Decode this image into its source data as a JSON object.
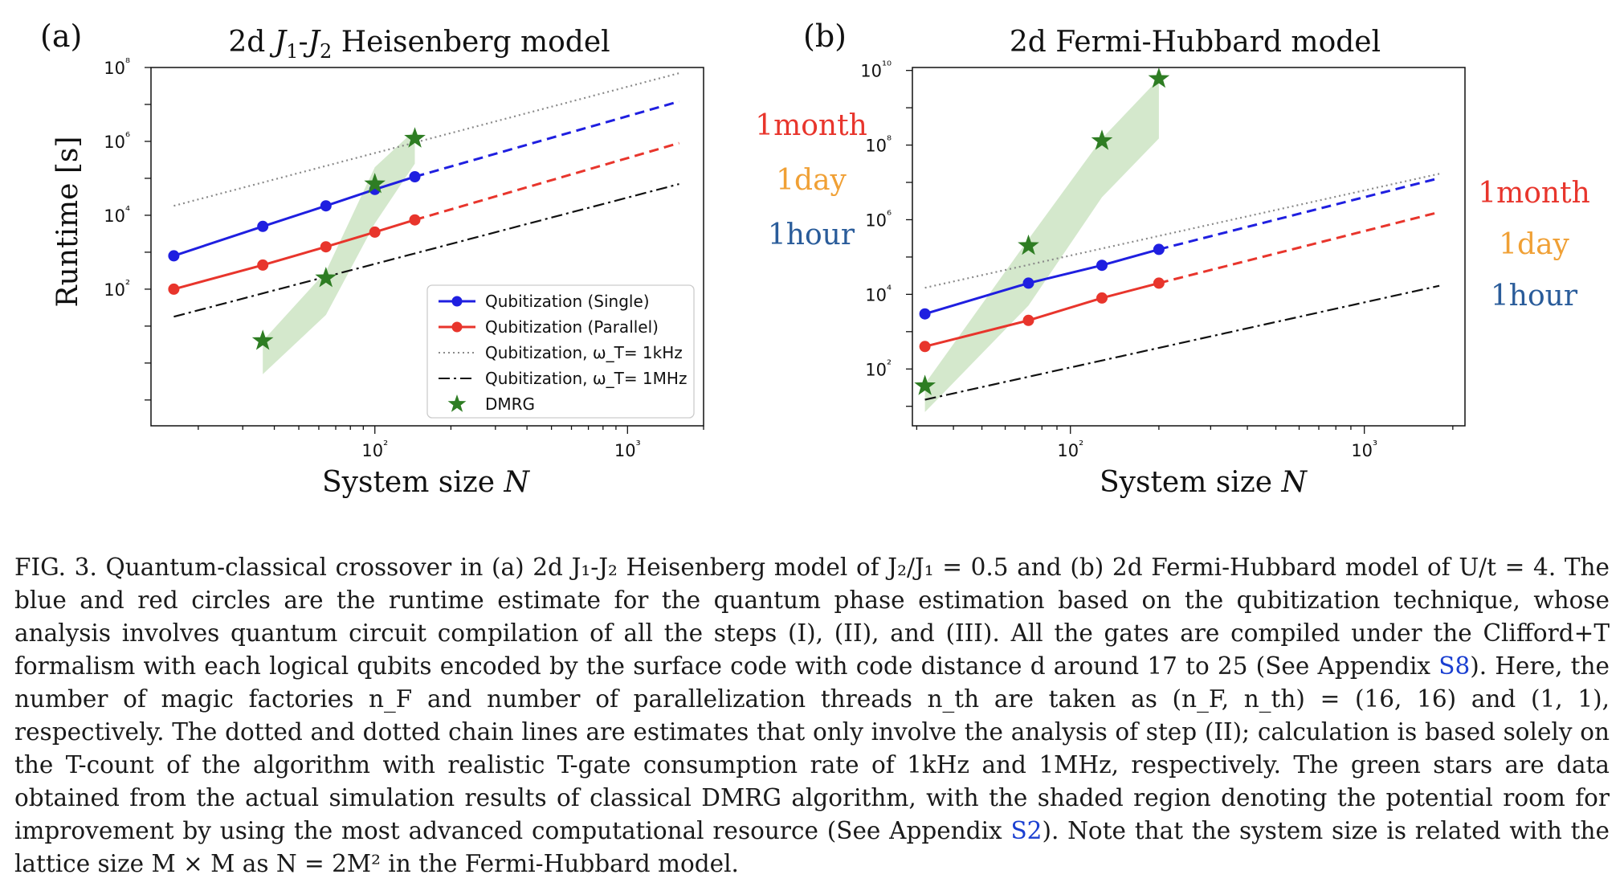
{
  "colors": {
    "single": "#1f1fe0",
    "parallel": "#e8352c",
    "khz": "#8a8a8a",
    "mhz": "#111111",
    "dmrg": "#2e7d23",
    "dmrg_band": "#cfe5c7",
    "label_month": "#e8352c",
    "label_day": "#f0a035",
    "label_hour": "#2a5c9a"
  },
  "caption": {
    "fig": "FIG. 3.",
    "p1": "Quantum-classical crossover in (a) 2d J₁-J₂ Heisenberg model of J₂/J₁ = 0.5 and (b) 2d Fermi-Hubbard model of U/t = 4. The blue and red circles are the runtime estimate for the quantum phase estimation based on the qubitization technique, whose analysis involves quantum circuit compilation of all the steps (I), (II), and (III). All the gates are compiled under the Clifford+T formalism with each logical qubits encoded by the surface code with code distance d around 17 to 25 (See Appendix",
    "ref1": "S8",
    "p2": "). Here, the number of magic factories n_F and number of parallelization threads n_th are taken as (n_F, n_th) = (16, 16) and (1, 1), respectively. The dotted and dotted chain lines are estimates that only involve the analysis of step (II); calculation is based solely on the T-count of the algorithm with realistic T-gate consumption rate of 1kHz and 1MHz, respectively. The green stars are data obtained from the actual simulation results of classical DMRG algorithm, with the shaded region denoting the potential room for improvement by using the most advanced computational resource (See Appendix",
    "ref2": "S2",
    "p3": "). Note that the system size is related with the lattice size M × M as N = 2M² in the Fermi-Hubbard model."
  },
  "chart_data": [
    {
      "panel": "(a)",
      "type": "line",
      "title": "2d J1-J2 Heisenberg model",
      "xlabel": "System size N",
      "ylabel": "Runtime [s]",
      "xscale": "log",
      "yscale": "log",
      "xlim": [
        13,
        2000
      ],
      "ylim": [
        0.02,
        100000000.0
      ],
      "xticks": [
        {
          "v": 100,
          "label": "10²"
        },
        {
          "v": 1000,
          "label": "10³"
        }
      ],
      "yticks": [
        {
          "v": 100,
          "label": "10²"
        },
        {
          "v": 10000,
          "label": "10⁴"
        },
        {
          "v": 1000000,
          "label": "10⁶"
        },
        {
          "v": 100000000,
          "label": "10⁸"
        }
      ],
      "legend_position": "bottom-right",
      "legend": [
        {
          "name": "Qubitization (Single)",
          "style": "single"
        },
        {
          "name": "Qubitization (Parallel)",
          "style": "parallel"
        },
        {
          "name": "Qubitization, ω_T= 1kHz",
          "style": "khz"
        },
        {
          "name": "Qubitization, ω_T= 1MHz",
          "style": "mhz"
        },
        {
          "name": "DMRG",
          "style": "dmrg"
        }
      ],
      "time_labels": [
        "1month",
        "1day",
        "1hour"
      ],
      "series": [
        {
          "name": "Qubitization (Single)",
          "x": [
            16,
            36,
            64,
            100,
            144
          ],
          "y": [
            800,
            5000,
            18000,
            50000,
            110000
          ],
          "extrapolation": {
            "x": [
              144,
              1600
            ],
            "y": [
              110000,
              12000000
            ]
          }
        },
        {
          "name": "Qubitization (Parallel)",
          "x": [
            16,
            36,
            64,
            100,
            144
          ],
          "y": [
            100,
            450,
            1400,
            3500,
            7500
          ],
          "extrapolation": {
            "x": [
              144,
              1600
            ],
            "y": [
              7500,
              900000
            ]
          }
        },
        {
          "name": "Qubitization, ω_T= 1kHz",
          "x": [
            16,
            1600
          ],
          "y": [
            18000,
            70000000
          ]
        },
        {
          "name": "Qubitization, ω_T= 1MHz",
          "x": [
            16,
            1600
          ],
          "y": [
            18,
            70000
          ]
        },
        {
          "name": "DMRG",
          "x": [
            36,
            64,
            100,
            144
          ],
          "y": [
            4,
            200,
            70000,
            1200000
          ],
          "band": {
            "x": [
              36,
              64,
              100,
              144
            ],
            "lower": [
              0.5,
              20,
              6000,
              250000
            ],
            "upper": [
              4,
              300,
              200000,
              2000000
            ]
          }
        }
      ]
    },
    {
      "panel": "(b)",
      "type": "line",
      "title": "2d Fermi-Hubbard model",
      "xlabel": "System size N",
      "ylabel": "",
      "xscale": "log",
      "yscale": "log",
      "xlim": [
        29,
        2200
      ],
      "ylim": [
        3,
        12000000000.0
      ],
      "xticks": [
        {
          "v": 100,
          "label": "10²"
        },
        {
          "v": 1000,
          "label": "10³"
        }
      ],
      "yticks": [
        {
          "v": 100,
          "label": "10²"
        },
        {
          "v": 10000,
          "label": "10⁴"
        },
        {
          "v": 1000000,
          "label": "10⁶"
        },
        {
          "v": 100000000,
          "label": "10⁸"
        },
        {
          "v": 10000000000,
          "label": "10¹⁰"
        }
      ],
      "time_labels": [
        "1month",
        "1day",
        "1hour"
      ],
      "series": [
        {
          "name": "Qubitization (Single)",
          "x": [
            32,
            72,
            128,
            200
          ],
          "y": [
            3000,
            20000,
            60000,
            160000
          ],
          "extrapolation": {
            "x": [
              200,
              1800
            ],
            "y": [
              160000,
              13000000
            ]
          }
        },
        {
          "name": "Qubitization (Parallel)",
          "x": [
            32,
            72,
            128,
            200
          ],
          "y": [
            400,
            2000,
            8000,
            20000
          ],
          "extrapolation": {
            "x": [
              200,
              1800
            ],
            "y": [
              20000,
              1600000
            ]
          }
        },
        {
          "name": "Qubitization, ω_T= 1kHz",
          "x": [
            32,
            1800
          ],
          "y": [
            15000,
            17000000
          ]
        },
        {
          "name": "Qubitization, ω_T= 1MHz",
          "x": [
            32,
            1800
          ],
          "y": [
            15,
            17000
          ]
        },
        {
          "name": "DMRG",
          "x": [
            32,
            72,
            128,
            200
          ],
          "y": [
            35,
            200000,
            130000000,
            6000000000
          ],
          "band": {
            "x": [
              32,
              72,
              128,
              200
            ],
            "lower": [
              7,
              5000,
              4000000,
              150000000
            ],
            "upper": [
              40,
              300000,
              150000000,
              6000000000
            ]
          }
        }
      ]
    }
  ]
}
